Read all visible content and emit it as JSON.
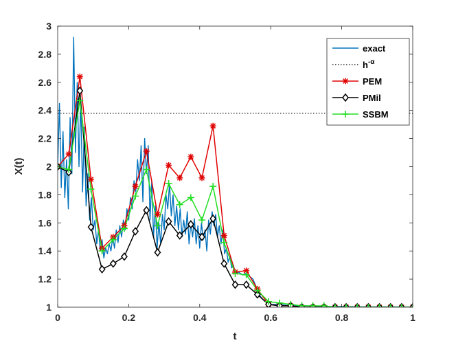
{
  "chart_data": {
    "type": "line",
    "xlabel": "t",
    "ylabel": "X(t)",
    "xlim": [
      0,
      1
    ],
    "ylim": [
      1,
      3
    ],
    "xticks": [
      "0",
      "0.2",
      "0.4",
      "0.6",
      "0.8",
      "1"
    ],
    "yticks": [
      "1",
      "1.2",
      "1.4",
      "1.6",
      "1.8",
      "2",
      "2.2",
      "2.4",
      "2.6",
      "2.8",
      "3"
    ],
    "grid": false,
    "legend_position": "top-right",
    "series": [
      {
        "name": "exact",
        "color": "#0072bd",
        "style": "line",
        "x": [
          0,
          0.005,
          0.01,
          0.015,
          0.02,
          0.025,
          0.03,
          0.035,
          0.04,
          0.045,
          0.05,
          0.055,
          0.06,
          0.065,
          0.07,
          0.075,
          0.08,
          0.085,
          0.09,
          0.095,
          0.1,
          0.105,
          0.11,
          0.115,
          0.12,
          0.125,
          0.13,
          0.135,
          0.14,
          0.145,
          0.15,
          0.155,
          0.16,
          0.165,
          0.17,
          0.175,
          0.18,
          0.185,
          0.19,
          0.195,
          0.2,
          0.205,
          0.21,
          0.215,
          0.22,
          0.225,
          0.23,
          0.235,
          0.24,
          0.245,
          0.25,
          0.255,
          0.26,
          0.265,
          0.27,
          0.275,
          0.28,
          0.285,
          0.29,
          0.295,
          0.3,
          0.305,
          0.31,
          0.315,
          0.32,
          0.325,
          0.33,
          0.335,
          0.34,
          0.345,
          0.35,
          0.355,
          0.36,
          0.365,
          0.37,
          0.375,
          0.38,
          0.385,
          0.39,
          0.395,
          0.4,
          0.405,
          0.41,
          0.415,
          0.42,
          0.425,
          0.43,
          0.435,
          0.44,
          0.445,
          0.45,
          0.455,
          0.46,
          0.465,
          0.47,
          0.475,
          0.48,
          0.485,
          0.49,
          0.495,
          0.5,
          0.51,
          0.52,
          0.53,
          0.54,
          0.55,
          0.56,
          0.57,
          0.58,
          0.59,
          0.6,
          0.62,
          0.64,
          0.66,
          0.7,
          0.75,
          0.8,
          0.85,
          0.9,
          0.95,
          1
        ],
        "y": [
          2.0,
          2.45,
          1.85,
          2.25,
          1.78,
          2.05,
          1.7,
          2.35,
          1.95,
          2.92,
          2.1,
          2.6,
          2.0,
          2.48,
          1.82,
          2.28,
          1.72,
          1.95,
          1.62,
          1.78,
          1.55,
          1.62,
          1.45,
          1.55,
          1.4,
          1.48,
          1.35,
          1.42,
          1.38,
          1.45,
          1.4,
          1.5,
          1.42,
          1.55,
          1.46,
          1.58,
          1.5,
          1.62,
          1.55,
          1.7,
          1.62,
          1.78,
          1.7,
          1.9,
          1.82,
          2.05,
          1.9,
          2.15,
          1.75,
          2.2,
          1.95,
          2.15,
          1.62,
          1.9,
          1.5,
          1.72,
          1.42,
          1.6,
          1.45,
          1.66,
          1.55,
          1.8,
          1.7,
          1.88,
          1.65,
          1.8,
          1.58,
          1.72,
          1.55,
          1.7,
          1.5,
          1.62,
          1.52,
          1.68,
          1.45,
          1.6,
          1.5,
          1.63,
          1.45,
          1.58,
          1.42,
          1.6,
          1.48,
          1.55,
          1.4,
          1.62,
          1.52,
          1.68,
          1.58,
          1.66,
          1.5,
          1.58,
          1.45,
          1.55,
          1.38,
          1.42,
          1.32,
          1.36,
          1.28,
          1.3,
          1.24,
          1.25,
          1.23,
          1.24,
          1.22,
          1.2,
          1.14,
          1.08,
          1.05,
          1.03,
          1.02,
          1.02,
          1.015,
          1.01,
          1.01,
          1.005,
          1.005,
          1.003,
          1.002,
          1.002,
          1.0
        ]
      },
      {
        "name": "h^{-α}",
        "color": "#000000",
        "style": "dotted",
        "x": [
          0,
          1
        ],
        "y": [
          2.38,
          2.38
        ]
      },
      {
        "name": "PEM",
        "color": "#e00000",
        "style": "line-marker",
        "marker": "star",
        "x": [
          0,
          0.03125,
          0.0625,
          0.09375,
          0.125,
          0.15625,
          0.1875,
          0.21875,
          0.25,
          0.28125,
          0.3125,
          0.34375,
          0.375,
          0.40625,
          0.4375,
          0.46875,
          0.5,
          0.53125,
          0.5625,
          0.59375,
          0.625,
          0.65625,
          0.6875,
          0.71875,
          0.75,
          0.78125,
          0.8125,
          0.84375,
          0.875,
          0.90625,
          0.9375,
          0.96875,
          1
        ],
        "y": [
          2.0,
          2.09,
          2.64,
          1.91,
          1.42,
          1.5,
          1.58,
          1.86,
          2.11,
          1.66,
          2.01,
          1.92,
          2.07,
          1.92,
          2.29,
          1.51,
          1.25,
          1.26,
          1.13,
          1.02,
          1.01,
          1.01,
          1.0,
          1.0,
          1.0,
          1.0,
          1.0,
          1.0,
          1.0,
          1.0,
          1.0,
          1.0,
          1.0
        ]
      },
      {
        "name": "PMil",
        "color": "#000000",
        "style": "line-marker",
        "marker": "diamond",
        "x": [
          0,
          0.03125,
          0.0625,
          0.09375,
          0.125,
          0.15625,
          0.1875,
          0.21875,
          0.25,
          0.28125,
          0.3125,
          0.34375,
          0.375,
          0.40625,
          0.4375,
          0.46875,
          0.5,
          0.53125,
          0.5625,
          0.59375,
          0.625,
          0.65625,
          0.6875,
          0.71875,
          0.75,
          0.78125,
          0.8125,
          0.84375,
          0.875,
          0.90625,
          0.9375,
          0.96875,
          1
        ],
        "y": [
          2.0,
          1.96,
          2.54,
          1.57,
          1.27,
          1.31,
          1.36,
          1.54,
          1.69,
          1.39,
          1.61,
          1.51,
          1.59,
          1.5,
          1.63,
          1.31,
          1.16,
          1.16,
          1.09,
          1.02,
          1.01,
          1.01,
          1.0,
          1.0,
          1.0,
          1.0,
          1.0,
          1.0,
          1.0,
          1.0,
          1.0,
          1.0,
          1.0
        ]
      },
      {
        "name": "SSBM",
        "color": "#22dd22",
        "style": "line-marker",
        "marker": "plus",
        "x": [
          0,
          0.03125,
          0.0625,
          0.09375,
          0.125,
          0.15625,
          0.1875,
          0.21875,
          0.25,
          0.28125,
          0.3125,
          0.34375,
          0.375,
          0.40625,
          0.4375,
          0.46875,
          0.5,
          0.53125,
          0.5625,
          0.59375,
          0.625,
          0.65625,
          0.6875,
          0.71875,
          0.75,
          0.78125,
          0.8125,
          0.84375,
          0.875,
          0.90625,
          0.9375,
          0.96875,
          1
        ],
        "y": [
          2.0,
          1.98,
          2.47,
          1.84,
          1.4,
          1.48,
          1.56,
          1.79,
          1.98,
          1.58,
          1.88,
          1.73,
          1.78,
          1.62,
          1.86,
          1.46,
          1.24,
          1.23,
          1.12,
          1.04,
          1.03,
          1.02,
          1.01,
          1.01,
          1.01,
          1.0,
          1.0,
          1.0,
          1.0,
          1.0,
          1.0,
          1.0,
          1.0
        ]
      }
    ]
  }
}
